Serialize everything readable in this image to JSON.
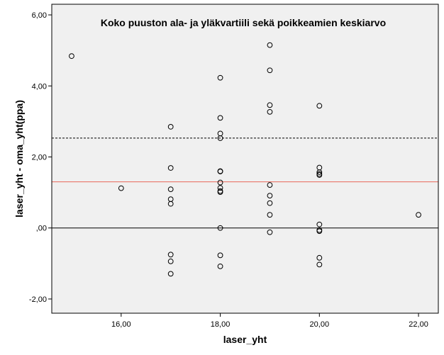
{
  "chart_data": {
    "type": "scatter",
    "title": "Koko puuston ala- ja yläkvartiili sekä poikkeamien keskiarvo",
    "xlabel": "laser_yht",
    "ylabel": "laser_yht - oma_yht(ppa)",
    "xlim": [
      14.6,
      22.4
    ],
    "ylim": [
      -2.4,
      6.3
    ],
    "x_ticks": [
      16,
      18,
      20,
      22
    ],
    "x_tick_labels": [
      "16,00",
      "18,00",
      "20,00",
      "22,00"
    ],
    "y_ticks": [
      -2,
      0,
      2,
      4,
      6
    ],
    "y_tick_labels": [
      "-2,00",
      ",00",
      "2,00",
      "4,00",
      "6,00"
    ],
    "grid": false,
    "background_color": "#f0f0f0",
    "reference_lines": [
      {
        "y": 2.53,
        "style": "dashed",
        "color": "#000000"
      },
      {
        "y": 1.3,
        "style": "solid",
        "color": "#e8675a"
      },
      {
        "y": 0.0,
        "style": "solid",
        "color": "#000000"
      }
    ],
    "points": [
      {
        "x": 15,
        "y": 4.84
      },
      {
        "x": 16,
        "y": 1.12
      },
      {
        "x": 17,
        "y": 2.85
      },
      {
        "x": 17,
        "y": 1.69
      },
      {
        "x": 17,
        "y": 1.09
      },
      {
        "x": 17,
        "y": 0.81
      },
      {
        "x": 17,
        "y": 0.68
      },
      {
        "x": 17,
        "y": -0.75
      },
      {
        "x": 17,
        "y": -0.94
      },
      {
        "x": 17,
        "y": -1.29
      },
      {
        "x": 18,
        "y": 4.23
      },
      {
        "x": 18,
        "y": 3.1
      },
      {
        "x": 18,
        "y": 2.66
      },
      {
        "x": 18,
        "y": 2.53
      },
      {
        "x": 18,
        "y": 1.6
      },
      {
        "x": 18,
        "y": 1.59
      },
      {
        "x": 18,
        "y": 1.28
      },
      {
        "x": 18,
        "y": 1.13
      },
      {
        "x": 18,
        "y": 1.04
      },
      {
        "x": 18,
        "y": 1.01
      },
      {
        "x": 18,
        "y": 0.0
      },
      {
        "x": 18,
        "y": -0.77
      },
      {
        "x": 18,
        "y": -1.08
      },
      {
        "x": 19,
        "y": 5.15
      },
      {
        "x": 19,
        "y": 4.44
      },
      {
        "x": 19,
        "y": 3.46
      },
      {
        "x": 19,
        "y": 3.27
      },
      {
        "x": 19,
        "y": 1.21
      },
      {
        "x": 19,
        "y": 0.91
      },
      {
        "x": 19,
        "y": 0.7
      },
      {
        "x": 19,
        "y": 0.37
      },
      {
        "x": 19,
        "y": -0.12
      },
      {
        "x": 20,
        "y": 3.44
      },
      {
        "x": 20,
        "y": 1.7
      },
      {
        "x": 20,
        "y": 1.57
      },
      {
        "x": 20,
        "y": 1.52
      },
      {
        "x": 20,
        "y": 1.49
      },
      {
        "x": 20,
        "y": 0.1
      },
      {
        "x": 20,
        "y": -0.06
      },
      {
        "x": 20,
        "y": -0.09
      },
      {
        "x": 20,
        "y": -0.84
      },
      {
        "x": 20,
        "y": -1.03
      },
      {
        "x": 22,
        "y": 0.37
      }
    ]
  }
}
